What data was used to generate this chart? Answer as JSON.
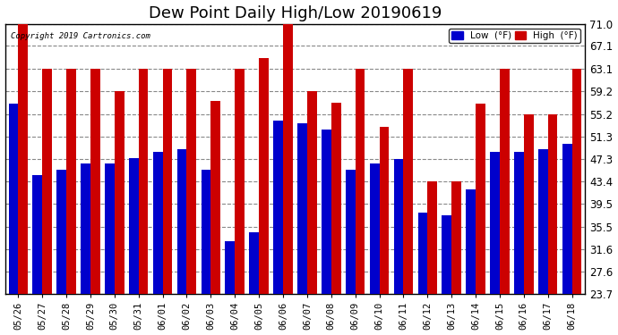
{
  "title": "Dew Point Daily High/Low 20190619",
  "copyright": "Copyright 2019 Cartronics.com",
  "dates": [
    "05/26",
    "05/27",
    "05/28",
    "05/29",
    "05/30",
    "05/31",
    "06/01",
    "06/02",
    "06/03",
    "06/04",
    "06/05",
    "06/06",
    "06/07",
    "06/08",
    "06/09",
    "06/10",
    "06/11",
    "06/12",
    "06/13",
    "06/14",
    "06/15",
    "06/16",
    "06/17",
    "06/18"
  ],
  "low_values": [
    57.0,
    44.5,
    45.5,
    46.5,
    46.5,
    47.5,
    48.5,
    49.0,
    45.5,
    33.0,
    34.5,
    54.0,
    53.5,
    52.5,
    45.5,
    46.5,
    47.3,
    38.0,
    37.5,
    42.0,
    48.5,
    48.5,
    49.0,
    50.0
  ],
  "high_values": [
    71.0,
    63.1,
    63.1,
    63.1,
    59.2,
    63.1,
    63.1,
    63.1,
    57.5,
    63.1,
    65.0,
    71.0,
    59.2,
    57.2,
    63.1,
    53.0,
    63.1,
    43.4,
    43.4,
    57.0,
    63.1,
    55.2,
    55.2,
    63.1
  ],
  "low_color": "#0000cc",
  "high_color": "#cc0000",
  "ylim_min": 23.7,
  "ylim_max": 71.0,
  "yticks": [
    23.7,
    27.6,
    31.6,
    35.5,
    39.5,
    43.4,
    47.3,
    51.3,
    55.2,
    59.2,
    63.1,
    67.1,
    71.0
  ],
  "bg_color": "#ffffff",
  "grid_color": "#888888",
  "title_fontsize": 13,
  "bar_width": 0.4,
  "legend_low_label": "Low  (°F)",
  "legend_high_label": "High  (°F)"
}
